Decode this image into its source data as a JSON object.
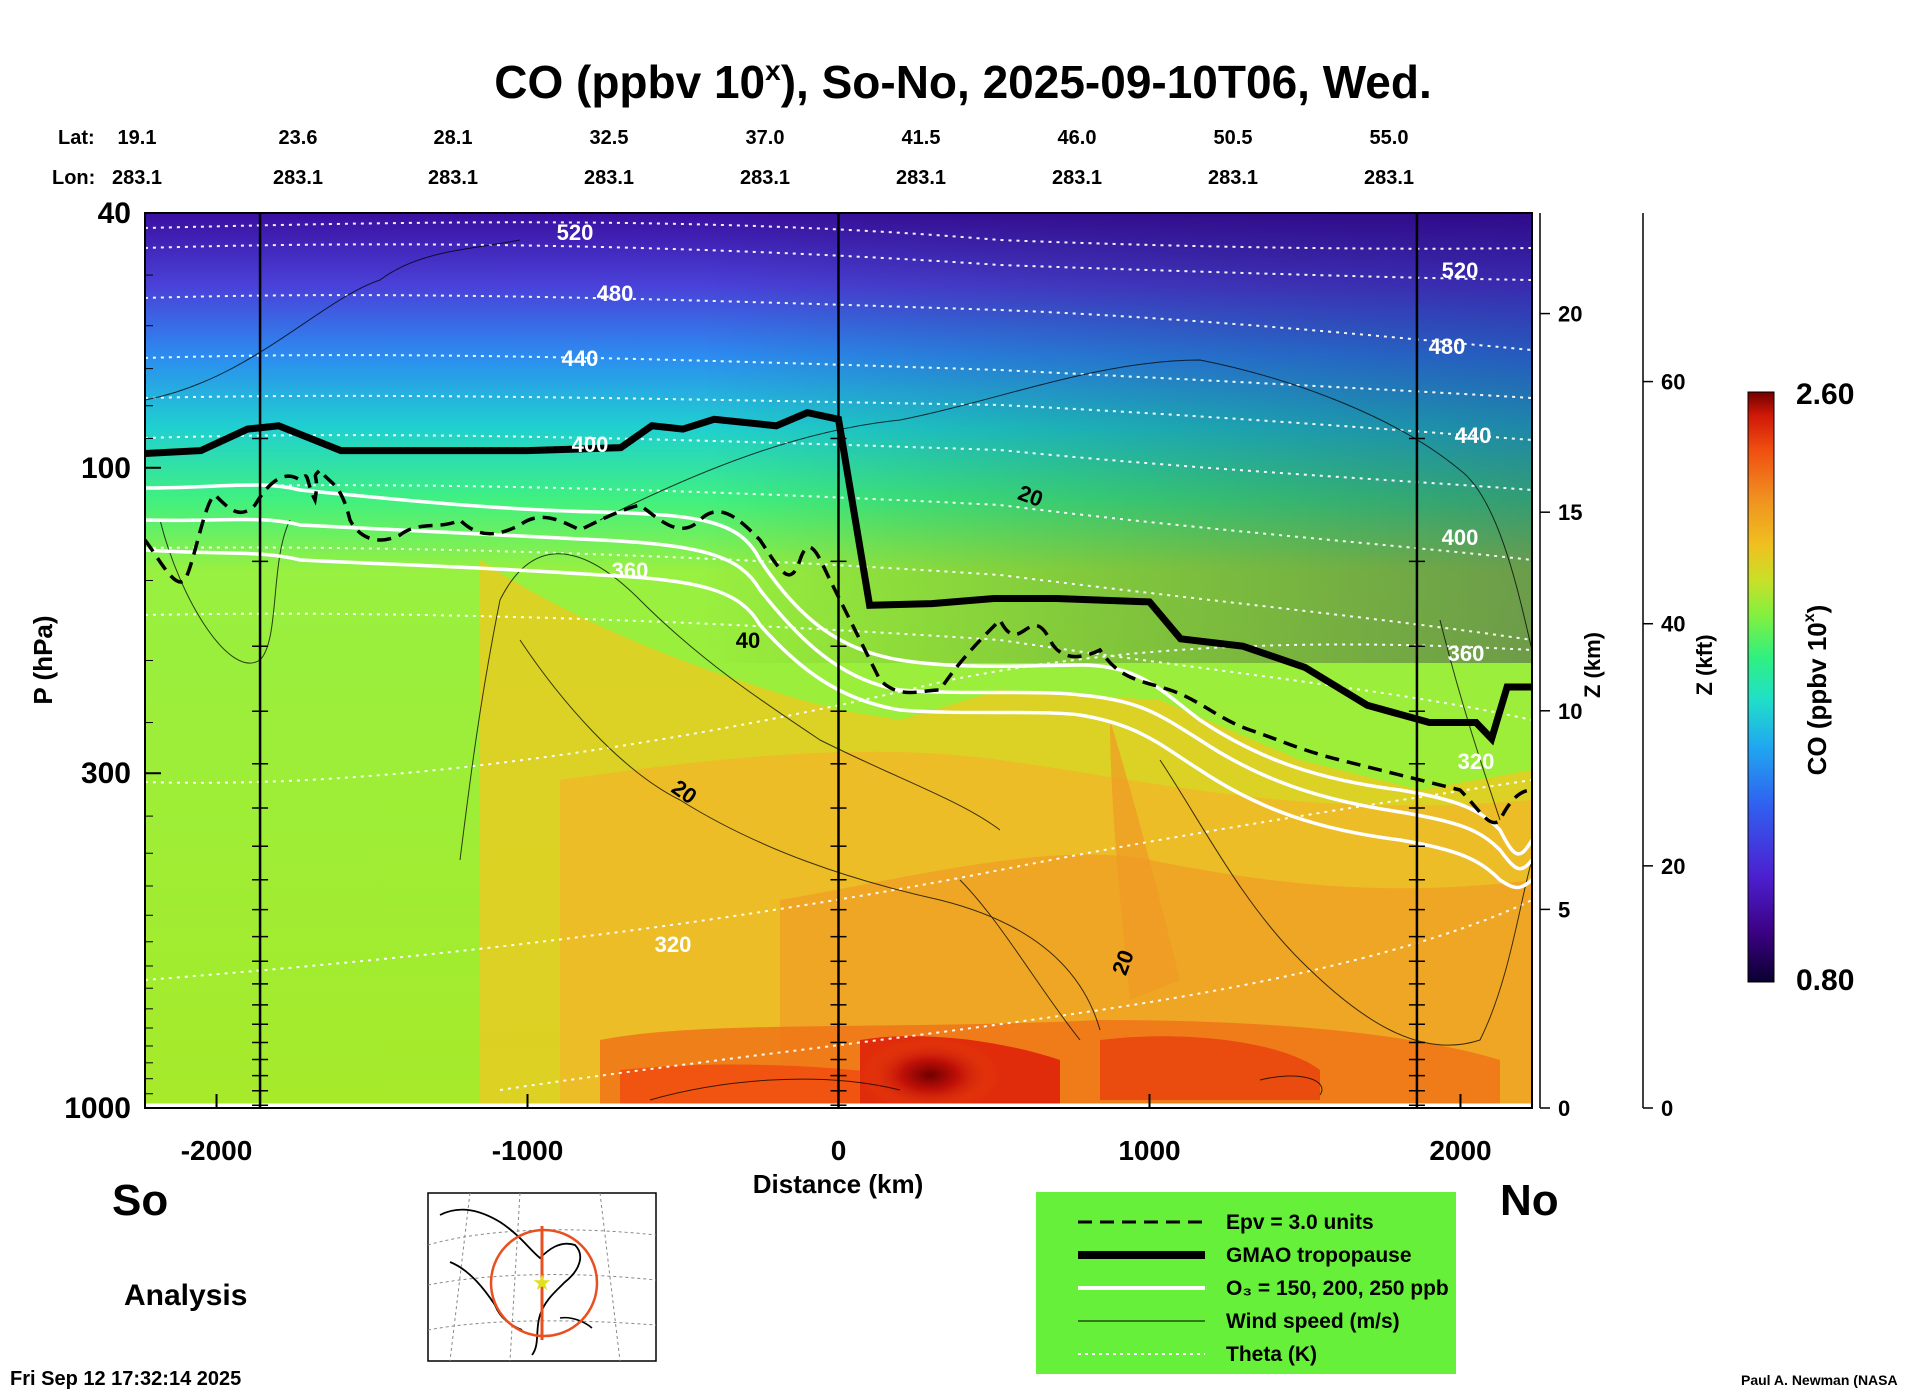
{
  "chart_data": {
    "type": "heatmap",
    "title_prefix": "CO (ppbv 10",
    "title_sup": "x",
    "title_suffix": "), So-No, 2025-09-10T06, Wed.",
    "xlabel": "Distance (km)",
    "ylabel": "P (hPa)",
    "x_ticks": [
      -2000,
      -1000,
      0,
      1000,
      2000
    ],
    "x_range": [
      -2230,
      2230
    ],
    "y_ticks": [
      40,
      100,
      300,
      1000
    ],
    "y_range": [
      40,
      1000
    ],
    "y_scale": "log",
    "lat_label": "Lat:",
    "lon_label": "Lon:",
    "lat_values": [
      "19.1",
      "23.6",
      "28.1",
      "32.5",
      "37.0",
      "41.5",
      "46.0",
      "50.5",
      "55.0"
    ],
    "lon_values": [
      "283.1",
      "283.1",
      "283.1",
      "283.1",
      "283.1",
      "283.1",
      "283.1",
      "283.1",
      "283.1"
    ],
    "z_km_label": "Z (km)",
    "z_km_ticks": [
      0,
      5,
      10,
      15,
      20
    ],
    "z_kft_label": "Z (kft)",
    "z_kft_ticks": [
      0,
      20,
      40,
      60
    ],
    "colorbar_label_prefix": "CO (ppbv 10",
    "colorbar_label_sup": "x",
    "colorbar_label_suffix": ")",
    "colorbar_max": "2.60",
    "colorbar_min": "0.80",
    "theta_labels": [
      "520",
      "480",
      "440",
      "400",
      "360",
      "320",
      "520",
      "480",
      "440",
      "400",
      "360",
      "320"
    ],
    "wind_labels": [
      "20",
      "40",
      "20",
      "20"
    ],
    "tropopause_km": [
      [
        -2230,
        95
      ],
      [
        -2050,
        94
      ],
      [
        -1900,
        87
      ],
      [
        -1800,
        86
      ],
      [
        -1600,
        94
      ],
      [
        -1400,
        94
      ],
      [
        -1000,
        94
      ],
      [
        -700,
        93
      ],
      [
        -600,
        86
      ],
      [
        -500,
        87
      ],
      [
        -400,
        84
      ],
      [
        -200,
        86
      ],
      [
        -100,
        82
      ],
      [
        0,
        84
      ],
      [
        100,
        164
      ],
      [
        300,
        163
      ],
      [
        500,
        160
      ],
      [
        700,
        160
      ],
      [
        1000,
        162
      ],
      [
        1100,
        185
      ],
      [
        1300,
        190
      ],
      [
        1500,
        205
      ],
      [
        1700,
        235
      ],
      [
        1900,
        250
      ],
      [
        2050,
        250
      ],
      [
        2100,
        265
      ],
      [
        2150,
        220
      ],
      [
        2230,
        220
      ]
    ],
    "colors": {
      "colorbar": [
        "#0a0030",
        "#3a0080",
        "#4c20d0",
        "#3060f0",
        "#20a8f0",
        "#20e0c8",
        "#30f080",
        "#80f040",
        "#c8e028",
        "#f0c020",
        "#f09020",
        "#f05010",
        "#d01808",
        "#700000"
      ]
    }
  },
  "labels": {
    "so": "So",
    "no": "No",
    "analysis": "Analysis",
    "timestamp": "Fri Sep 12 17:32:14 2025",
    "credit": "Paul A. Newman (NASA"
  },
  "legend": {
    "items": [
      {
        "label": "Epv = 3.0 units",
        "style": "dash"
      },
      {
        "label": "GMAO tropopause",
        "style": "thick"
      },
      {
        "label": "O₃ = 150, 200, 250 ppb",
        "style": "white"
      },
      {
        "label": "Wind speed (m/s)",
        "style": "thin"
      },
      {
        "label": "Theta (K)",
        "style": "dotted"
      }
    ],
    "background": "#66f03a"
  }
}
